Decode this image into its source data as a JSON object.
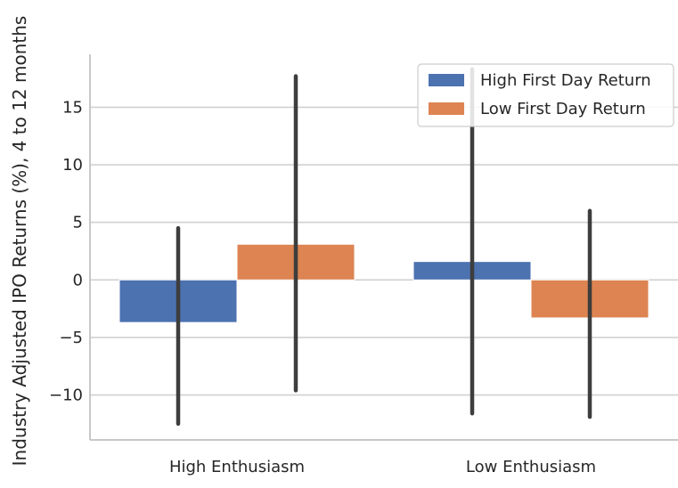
{
  "chart_data": {
    "type": "bar",
    "title": "",
    "xlabel": "",
    "ylabel": "Industry Adjusted IPO Returns (%), 4 to 12 months",
    "categories": [
      "High Enthusiasm",
      "Low Enthusiasm"
    ],
    "series": [
      {
        "name": "High First Day Return",
        "color": "#4c72b0",
        "values": [
          -3.7,
          1.6
        ],
        "ci_low": [
          -12.5,
          -11.6
        ],
        "ci_high": [
          4.5,
          18.3
        ]
      },
      {
        "name": "Low First Day Return",
        "color": "#dd8452",
        "values": [
          3.1,
          -3.3
        ],
        "ci_low": [
          -9.6,
          -11.9
        ],
        "ci_high": [
          17.7,
          6.0
        ]
      }
    ],
    "ylim": [
      -13.9,
      19.6
    ],
    "yticks": [
      -10,
      -5,
      0,
      5,
      10,
      15
    ],
    "ytick_labels": [
      "−10",
      "−5",
      "0",
      "5",
      "10",
      "15"
    ],
    "grid": "horizontal",
    "legend_position": "top-right"
  }
}
